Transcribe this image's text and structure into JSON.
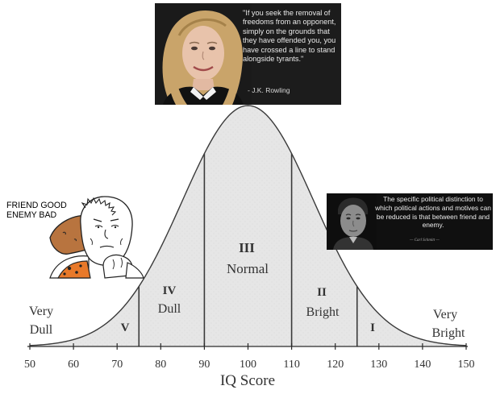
{
  "chart_data": {
    "type": "area",
    "x_ticks": [
      50,
      60,
      70,
      80,
      90,
      100,
      110,
      120,
      130,
      140,
      150
    ],
    "xlabel": "IQ Score",
    "xlim": [
      50,
      150
    ],
    "dividers": [
      75,
      90,
      110,
      125
    ],
    "regions": [
      {
        "numeral": "V",
        "name": ""
      },
      {
        "numeral": "IV",
        "name": "Dull"
      },
      {
        "numeral": "III",
        "name": "Normal"
      },
      {
        "numeral": "II",
        "name": "Bright"
      },
      {
        "numeral": "I",
        "name": ""
      }
    ],
    "side_labels": {
      "left": [
        "Very",
        "Dull"
      ],
      "right": [
        "Very",
        "Bright"
      ]
    }
  },
  "rowling": {
    "quote": "\"If you seek the removal of freedoms from an opponent, simply on the grounds that they have offended you, you have crossed a line to stand alongside tyrants.\"",
    "attribution": "- J.K. Rowling"
  },
  "schmitt": {
    "quote": "The specific political distinction to which political actions and motives can be reduced is that between friend and enemy.",
    "attribution": "— Carl Schmitt —"
  },
  "wojak": {
    "caption": "FRIEND GOOD ENEMY BAD"
  },
  "colors": {
    "curve_fill": "#e4e4e4",
    "curve_stroke": "#3a3a3a",
    "panel_bg": "#1c1c1c"
  }
}
